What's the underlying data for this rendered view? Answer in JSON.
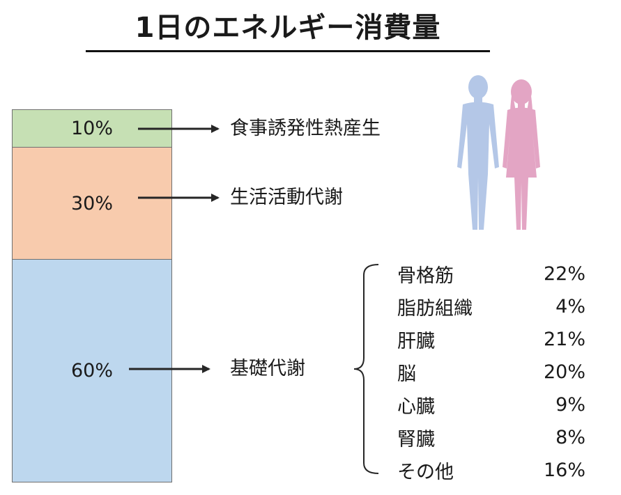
{
  "title": "1日のエネルギー消費量",
  "colors": {
    "thermogenesis": "#c6e0b4",
    "activity": "#f8cbad",
    "basal": "#bdd7ee",
    "male_silhouette": "#b4c7e7",
    "female_silhouette": "#e3a5c4"
  },
  "segments": [
    {
      "key": "thermogenesis",
      "percent": "10%",
      "value": 10,
      "label": "食事誘発性熱産生"
    },
    {
      "key": "activity",
      "percent": "30%",
      "value": 30,
      "label": "生活活動代謝"
    },
    {
      "key": "basal",
      "percent": "60%",
      "value": 60,
      "label": "基礎代謝"
    }
  ],
  "basal_breakdown": [
    {
      "organ": "骨格筋",
      "percent": "22%"
    },
    {
      "organ": "脂肪組織",
      "percent": "4%"
    },
    {
      "organ": "肝臓",
      "percent": "21%"
    },
    {
      "organ": "脳",
      "percent": "20%"
    },
    {
      "organ": "心臓",
      "percent": "9%"
    },
    {
      "organ": "腎臓",
      "percent": "8%"
    },
    {
      "organ": "その他",
      "percent": "16%"
    }
  ],
  "icons": [
    "male-silhouette-icon",
    "female-silhouette-icon"
  ]
}
